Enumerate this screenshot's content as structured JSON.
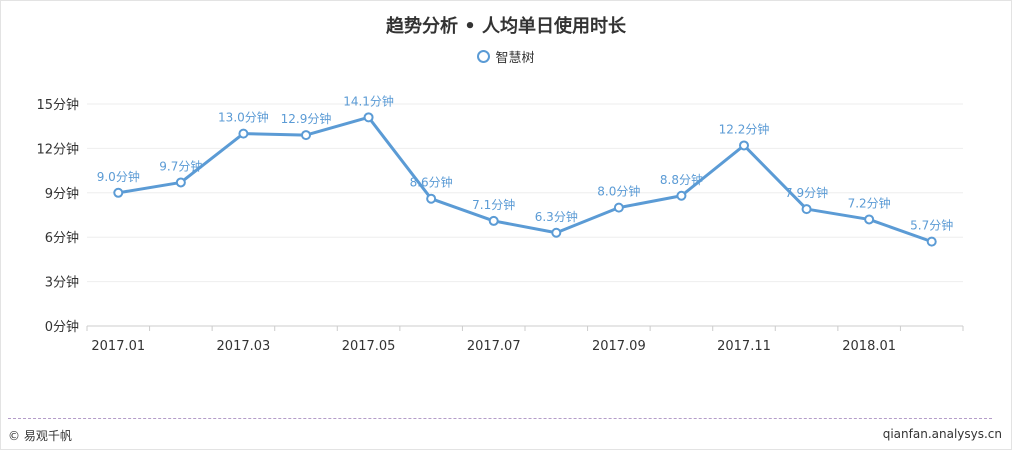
{
  "chart_data": {
    "type": "line",
    "title": "趋势分析 • 人均单日使用时长",
    "series": [
      {
        "name": "智慧树",
        "values": [
          9.0,
          9.7,
          13.0,
          12.9,
          14.1,
          8.6,
          7.1,
          6.3,
          8.0,
          8.8,
          12.2,
          7.9,
          7.2,
          5.7
        ],
        "labels": [
          "9.0分钟",
          "9.7分钟",
          "13.0分钟",
          "12.9分钟",
          "14.1分钟",
          "8.6分钟",
          "7.1分钟",
          "6.3分钟",
          "8.0分钟",
          "8.8分钟",
          "12.2分钟",
          "7.9分钟",
          "7.2分钟",
          "5.7分钟"
        ]
      }
    ],
    "x_ticks": [
      "2017.01",
      "2017.03",
      "2017.05",
      "2017.07",
      "2017.09",
      "2017.11",
      "2018.01"
    ],
    "y_ticks": [
      "0分钟",
      "3分钟",
      "6分钟",
      "9分钟",
      "12分钟",
      "15分钟"
    ],
    "ylim": [
      0,
      15
    ],
    "grid": true,
    "legend_position": "top-center",
    "colors": {
      "line": "#5b9bd5",
      "label": "#5b9bd5",
      "grid": "#eeeeee",
      "axis": "#cccccc"
    }
  },
  "footer": {
    "left": "© 易观千帆",
    "right": "qianfan.analysys.cn"
  }
}
